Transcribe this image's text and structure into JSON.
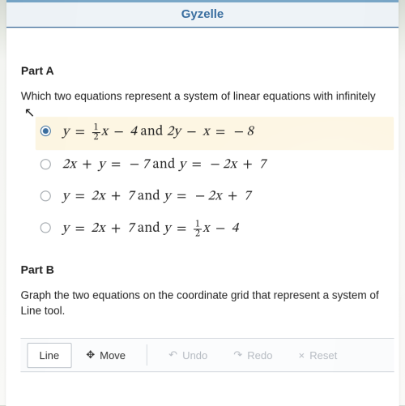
{
  "header": {
    "title": "Gyzelle"
  },
  "partA": {
    "heading": "Part A",
    "lead": "Which two equations represent a system of linear equations with infinitely",
    "selected_index": 0,
    "options": [
      {
        "html": "<i>y</i> <span class='op'>=</span> <span class='frac'><span class='num'>1</span><span class='den'>2</span></span><i>x</i> <span class='op'>−</span> 4 <span class='rm'> and </span> 2<i>y</i> <span class='op'>−</span> <i>x</i> <span class='op'>=</span> <span class='op'>−</span>8"
      },
      {
        "html": "2<i>x</i> <span class='op'>+</span> <i>y</i> <span class='op'>=</span> <span class='op'>−</span>7 <span class='rm'> and </span> <i>y</i> <span class='op'>=</span> <span class='op'>−</span>2<i>x</i> <span class='op'>+</span> 7"
      },
      {
        "html": "<i>y</i> <span class='op'>=</span> 2<i>x</i> <span class='op'>+</span> 7 <span class='rm'> and </span> <i>y</i> <span class='op'>=</span> <span class='op'>−</span>2<i>x</i> <span class='op'>+</span> 7"
      },
      {
        "html": "<i>y</i> <span class='op'>=</span> 2<i>x</i> <span class='op'>+</span> 7 <span class='rm'> and </span> <i>y</i> <span class='op'>=</span> <span class='frac'><span class='num'>1</span><span class='den'>2</span></span><i>x</i> <span class='op'>−</span> 4"
      }
    ]
  },
  "partB": {
    "heading": "Part B",
    "lead": "Graph the two equations on the coordinate grid that represent a system of",
    "sub": "Line tool."
  },
  "toolbar": {
    "line": "Line",
    "move": "Move",
    "undo": "Undo",
    "redo": "Redo",
    "reset": "Reset",
    "move_icon": "✥",
    "undo_icon": "↶",
    "redo_icon": "↷",
    "reset_icon": "×"
  },
  "colors": {
    "accent": "#3b6fa0",
    "selected_bg": "#fdf6e3",
    "dim_text": "#b6bbc2"
  }
}
